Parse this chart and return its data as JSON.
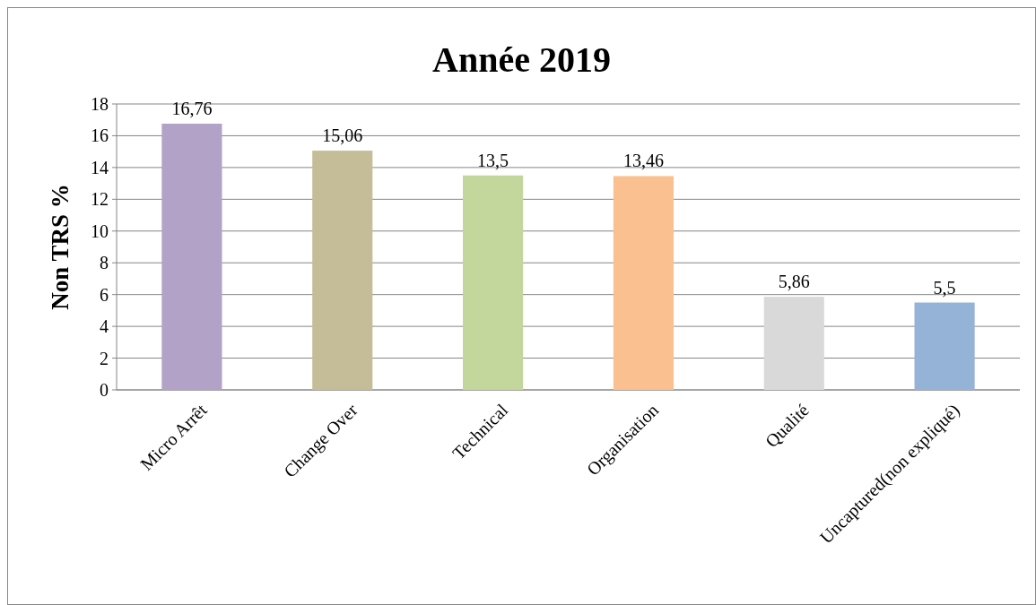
{
  "chart_data": {
    "type": "bar",
    "title": "Année 2019",
    "ylabel": "Non TRS %",
    "categories": [
      "Micro Arrêt",
      "Change Over",
      "Technical",
      "Organisation",
      "Qualité",
      "Uncaptured(non expliqué)"
    ],
    "values": [
      16.76,
      15.06,
      13.5,
      13.46,
      5.86,
      5.5
    ],
    "value_labels": [
      "16,76",
      "15,06",
      "13,5",
      "13,46",
      "5,86",
      "5,5"
    ],
    "colors": [
      "#b3a2c7",
      "#c4bd97",
      "#c3d69b",
      "#fac090",
      "#d9d9d9",
      "#95b3d7"
    ],
    "ylim": [
      0,
      18
    ],
    "yticks": [
      0,
      2,
      4,
      6,
      8,
      10,
      12,
      14,
      16,
      18
    ],
    "grid": "y"
  }
}
